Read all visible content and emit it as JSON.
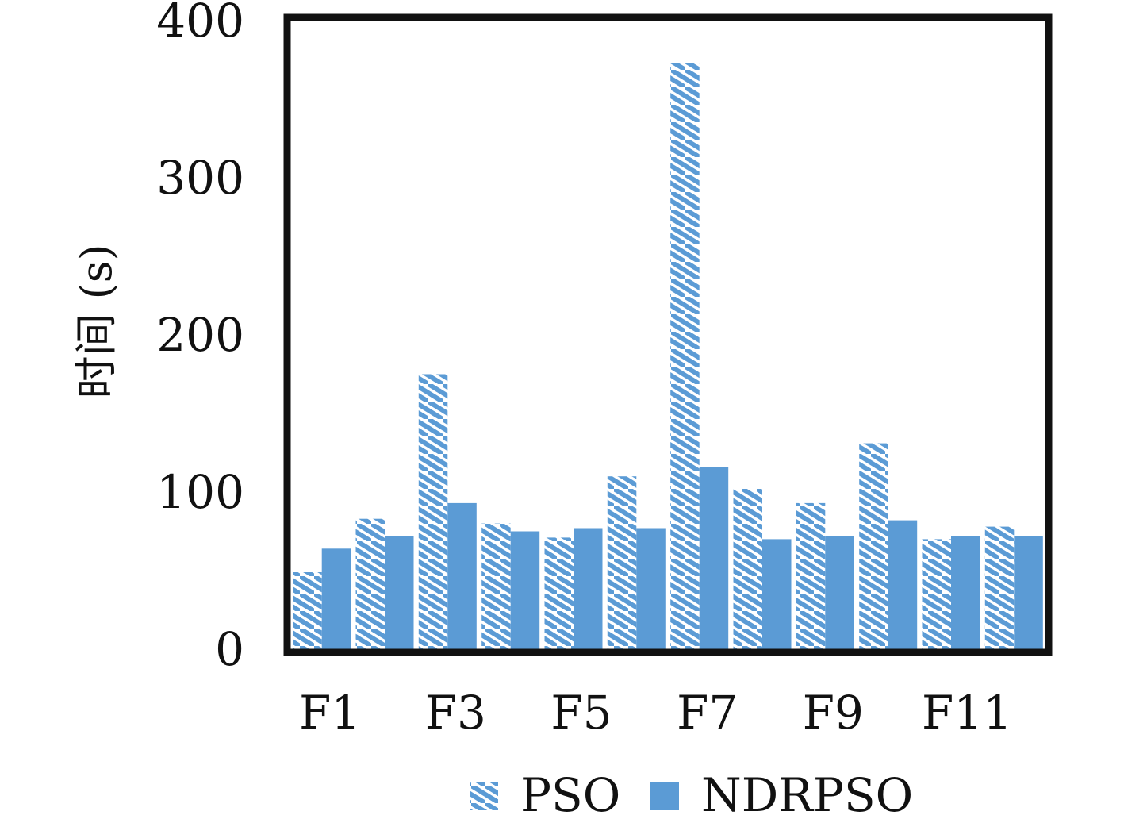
{
  "chart_data": {
    "type": "bar",
    "title": "",
    "xlabel": "",
    "ylabel": "时间 (s)",
    "ylim": [
      0,
      400
    ],
    "yticks": [
      "0",
      "100",
      "200",
      "300",
      "400"
    ],
    "categories": [
      "F1",
      "F2",
      "F3",
      "F4",
      "F5",
      "F6",
      "F7",
      "F8",
      "F9",
      "F10",
      "F11",
      "F12"
    ],
    "xtick_labels": [
      "F1",
      "F3",
      "F5",
      "F7",
      "F9",
      "F11"
    ],
    "series": [
      {
        "name": "PSO",
        "style": "hatched",
        "color": "#5b9bd5",
        "values": [
          49,
          83,
          175,
          80,
          71,
          110,
          373,
          102,
          93,
          131,
          70,
          78
        ]
      },
      {
        "name": "NDRPSO",
        "style": "solid",
        "color": "#5b9bd5",
        "values": [
          64,
          72,
          93,
          75,
          77,
          77,
          116,
          70,
          72,
          82,
          72,
          72
        ]
      }
    ],
    "grid": false,
    "legend_position": "bottom"
  }
}
